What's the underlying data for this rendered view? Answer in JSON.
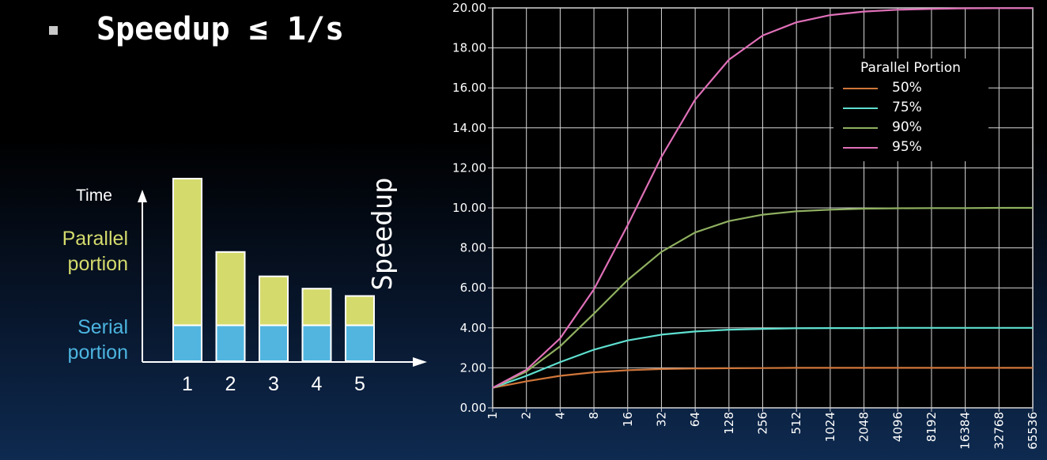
{
  "slide": {
    "title": "Speedup ≤ 1/s"
  },
  "illustration": {
    "time_label": "Time",
    "parallel_label": "Parallel portion",
    "serial_label": "Serial portion",
    "serial_color": "#52b5e0",
    "parallel_color": "#d4db6c",
    "processors": [
      "1",
      "2",
      "3",
      "4",
      "5"
    ],
    "serial_time": 0.2,
    "parallel_time": [
      0.8,
      0.4,
      0.267,
      0.2,
      0.16
    ]
  },
  "chart_data": {
    "type": "line",
    "title": "",
    "xlabel": "",
    "ylabel": "Speedup",
    "x_scale": "log2",
    "categories": [
      "1",
      "2",
      "4",
      "8",
      "16",
      "32",
      "64",
      "128",
      "256",
      "512",
      "1024",
      "2048",
      "4096",
      "8192",
      "16384",
      "32768",
      "65536"
    ],
    "ylim": [
      0,
      20
    ],
    "yticks": [
      "0.00",
      "2.00",
      "4.00",
      "6.00",
      "8.00",
      "10.00",
      "12.00",
      "14.00",
      "16.00",
      "18.00",
      "20.00"
    ],
    "grid": true,
    "legend_title": "Parallel Portion",
    "legend_position": "top-right",
    "series": [
      {
        "name": "50%",
        "color": "#d0763a",
        "values": [
          1.0,
          1.33,
          1.6,
          1.78,
          1.88,
          1.94,
          1.97,
          1.98,
          1.99,
          2.0,
          2.0,
          2.0,
          2.0,
          2.0,
          2.0,
          2.0,
          2.0
        ]
      },
      {
        "name": "75%",
        "color": "#5ee0d0",
        "values": [
          1.0,
          1.6,
          2.29,
          2.91,
          3.37,
          3.66,
          3.82,
          3.91,
          3.95,
          3.98,
          3.99,
          3.99,
          4.0,
          4.0,
          4.0,
          4.0,
          4.0
        ]
      },
      {
        "name": "90%",
        "color": "#8fb060",
        "values": [
          1.0,
          1.82,
          3.08,
          4.71,
          6.4,
          7.8,
          8.77,
          9.34,
          9.66,
          9.83,
          9.91,
          9.96,
          9.98,
          9.99,
          9.99,
          10.0,
          10.0
        ]
      },
      {
        "name": "95%",
        "color": "#e070b8",
        "values": [
          1.0,
          1.9,
          3.48,
          5.93,
          9.14,
          12.55,
          15.42,
          17.41,
          18.62,
          19.28,
          19.64,
          19.82,
          19.91,
          19.95,
          19.98,
          19.99,
          19.99
        ]
      }
    ]
  }
}
